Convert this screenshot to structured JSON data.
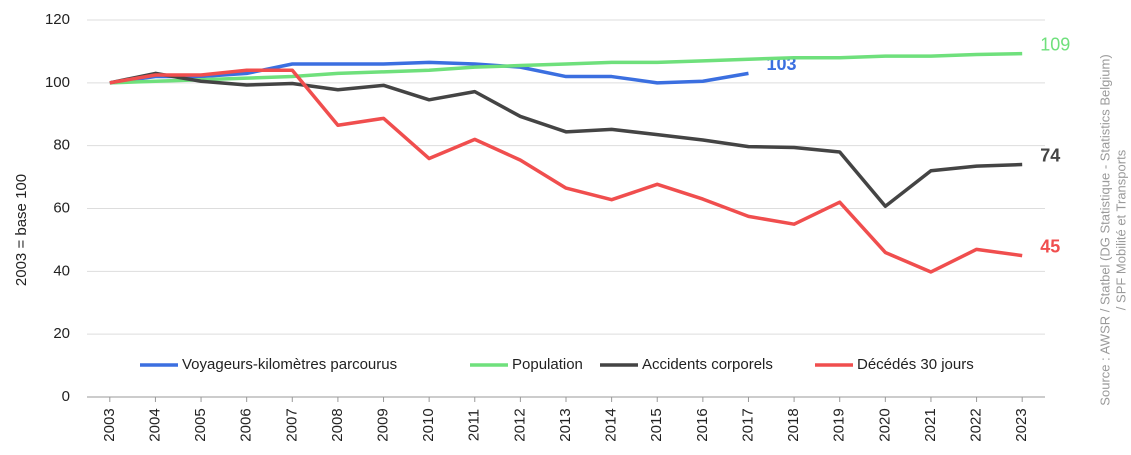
{
  "chart_data": {
    "type": "line",
    "y_label": "2003 = base 100",
    "source": [
      "Source : AWSR / Statbel (DG Statistique - Statistics Belgium)",
      "/ SPF Mobilité et Transports"
    ],
    "categories": [
      "2003",
      "2004",
      "2005",
      "2006",
      "2007",
      "2008",
      "2009",
      "2010",
      "2011",
      "2012",
      "2013",
      "2014",
      "2015",
      "2016",
      "2017",
      "2018",
      "2019",
      "2020",
      "2021",
      "2022",
      "2023"
    ],
    "ylim": [
      0,
      120
    ],
    "yticks": [
      0,
      20,
      40,
      60,
      80,
      100,
      120
    ],
    "grid": true,
    "legend": "bottom",
    "series": [
      {
        "name": "Voyageurs-kilomètres parcourus",
        "color": "#3b6fe0",
        "values": [
          100,
          102,
          102,
          103,
          106,
          106,
          106,
          106.5,
          106,
          105,
          102,
          102,
          100,
          100.5,
          103,
          null,
          null,
          null,
          null,
          null,
          null
        ],
        "value_labels": [
          null,
          null,
          null,
          null,
          null,
          null,
          null,
          null,
          null,
          null,
          null,
          null,
          null,
          null,
          "103",
          null,
          null,
          null,
          null,
          null,
          null
        ]
      },
      {
        "name": "Population",
        "color": "#6fe07c",
        "values": [
          100,
          100.5,
          101,
          101.5,
          102,
          103,
          103.5,
          104,
          105,
          105.5,
          106,
          106.5,
          106.5,
          107,
          107.5,
          108,
          108,
          108.5,
          108.5,
          109,
          109.3
        ],
        "value_labels": [
          null,
          null,
          null,
          null,
          null,
          null,
          null,
          null,
          null,
          null,
          null,
          null,
          null,
          null,
          null,
          null,
          null,
          null,
          null,
          null,
          "109"
        ]
      },
      {
        "name": "Accidents corporels",
        "color": "#444444",
        "values": [
          100,
          103,
          100.5,
          99.3,
          99.8,
          97.8,
          99.2,
          94.6,
          97.2,
          89.3,
          84.4,
          85.2,
          83.5,
          81.8,
          79.7,
          79.4,
          78,
          60.7,
          72,
          73.5,
          74
        ],
        "value_labels": [
          null,
          null,
          null,
          null,
          null,
          null,
          null,
          null,
          null,
          null,
          null,
          null,
          null,
          null,
          null,
          null,
          null,
          null,
          null,
          null,
          "74"
        ]
      },
      {
        "name": "Décédés 30 jours",
        "color": "#f04e4e",
        "values": [
          100,
          102.5,
          102.5,
          104,
          104,
          86.5,
          88.7,
          75.9,
          82,
          75.4,
          66.5,
          62.8,
          67.7,
          63,
          57.5,
          55,
          62,
          46,
          39.8,
          47,
          45
        ],
        "value_labels": [
          null,
          null,
          null,
          null,
          null,
          null,
          null,
          null,
          null,
          null,
          null,
          null,
          null,
          null,
          null,
          null,
          null,
          null,
          null,
          null,
          "45"
        ]
      }
    ]
  }
}
